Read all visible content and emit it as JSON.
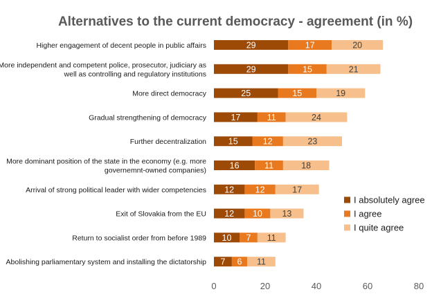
{
  "chart_data": {
    "type": "bar",
    "orientation": "horizontal",
    "stacked": true,
    "title": "Alternatives to the current democracy - agreement (in %)",
    "xlabel": "",
    "ylabel": "",
    "xlim": [
      0,
      80
    ],
    "xticks": [
      0,
      20,
      40,
      60,
      80
    ],
    "grid": false,
    "legend_position": "right",
    "categories": [
      [
        "Higher engagement of decent people in public affairs"
      ],
      [
        "More independent and competent police, prosecutor, judiciary as",
        "well as controlling and regulatory institutions"
      ],
      [
        "More direct democracy"
      ],
      [
        "Gradual strengthening of democracy"
      ],
      [
        "Further decentralization"
      ],
      [
        "More dominant position of the state in the economy (e.g. more",
        "governemnt-owned companies)"
      ],
      [
        "Arrival of strong political leader with wider competencies"
      ],
      [
        "Exit of Slovakia from the EU"
      ],
      [
        "Return to socialist order from before 1989"
      ],
      [
        "Abolishing parliamentary system and installing the dictatorship"
      ]
    ],
    "series": [
      {
        "name": "I absolutely agree",
        "color": "#9e4a07",
        "label_color": "#ffffff",
        "values": [
          29,
          29,
          25,
          17,
          15,
          16,
          12,
          12,
          10,
          7
        ]
      },
      {
        "name": "I agree",
        "color": "#e8791e",
        "label_color": "#ffffff",
        "values": [
          17,
          15,
          15,
          11,
          12,
          11,
          12,
          10,
          7,
          6
        ]
      },
      {
        "name": "I quite agree",
        "color": "#f7bf8c",
        "label_color": "#404040",
        "values": [
          20,
          21,
          19,
          24,
          23,
          18,
          17,
          13,
          11,
          11
        ]
      }
    ]
  }
}
